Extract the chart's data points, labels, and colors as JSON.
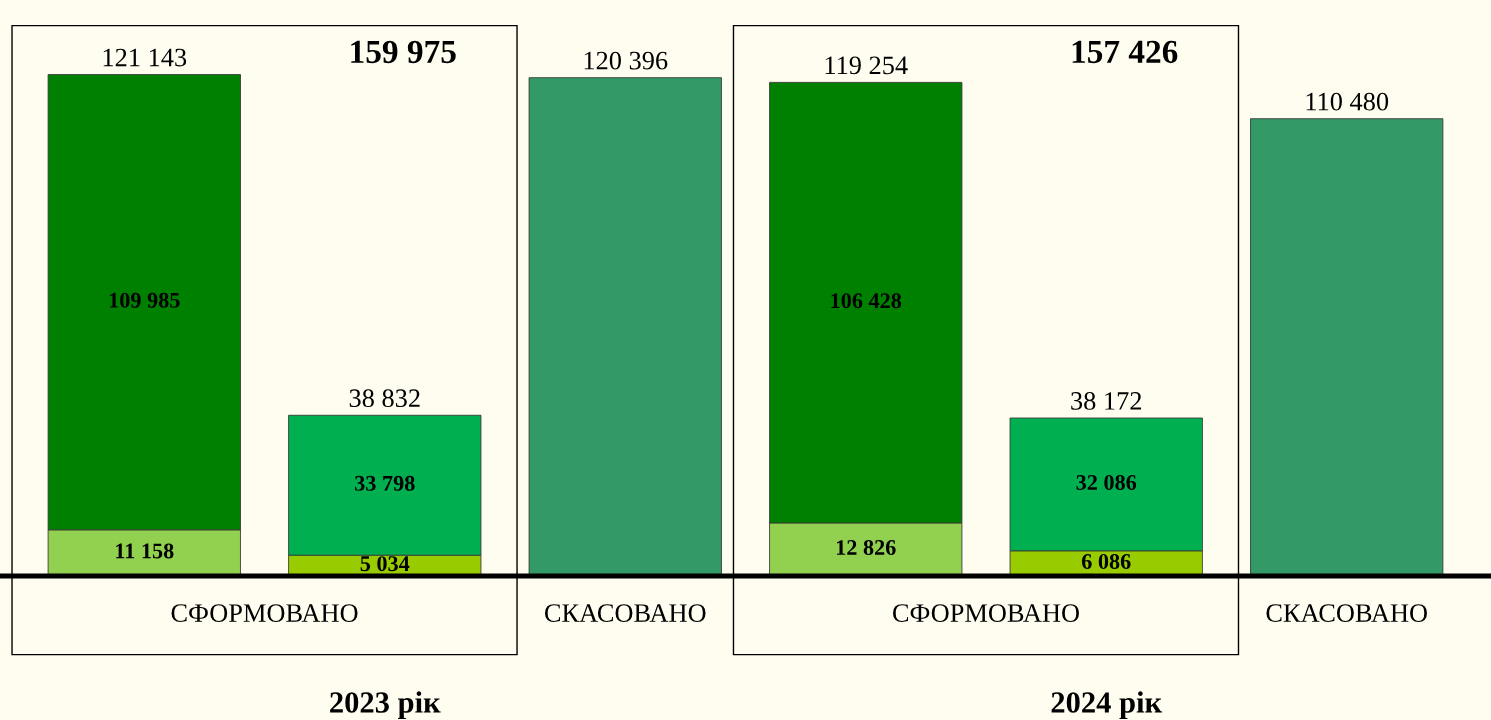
{
  "chart_data": {
    "type": "bar",
    "stacked": true,
    "categories": [
      null,
      null,
      null,
      null,
      null,
      null
    ],
    "series": [
      {
        "values": [
          11158,
          5034,
          null,
          12826,
          6086,
          null
        ],
        "colors": [
          "#92d050",
          "#99cc00",
          "#92d050",
          "#92d050",
          "#99cc00",
          "#92d050"
        ],
        "value_labels": [
          "11 158",
          "5 034",
          null,
          "12 826",
          "6 086",
          null
        ]
      },
      {
        "values": [
          109985,
          33798,
          null,
          106428,
          32086,
          null
        ],
        "colors": [
          "#008000",
          "#00b050",
          "#008000",
          "#008000",
          "#00b050",
          "#008000"
        ],
        "value_labels": [
          "109 985",
          "33 798",
          null,
          "106 428",
          "32 086",
          null
        ]
      },
      {
        "values": [
          null,
          null,
          120396,
          null,
          null,
          110480
        ],
        "colors": [
          "#339966",
          "#339966",
          "#339966",
          "#339966",
          "#339966",
          "#339966"
        ]
      }
    ],
    "totals": [
      "121 143",
      "38 832",
      "120 396",
      "119 254",
      "38 172",
      "110 480"
    ],
    "annotations": [
      "159 975",
      "157 426",
      "СФОРМОВАНО",
      "СКАСОВАНО",
      "СФОРМОВАНО",
      "СКАСОВАНО",
      "2023 рік",
      "2024 рік"
    ],
    "legend": false
  }
}
